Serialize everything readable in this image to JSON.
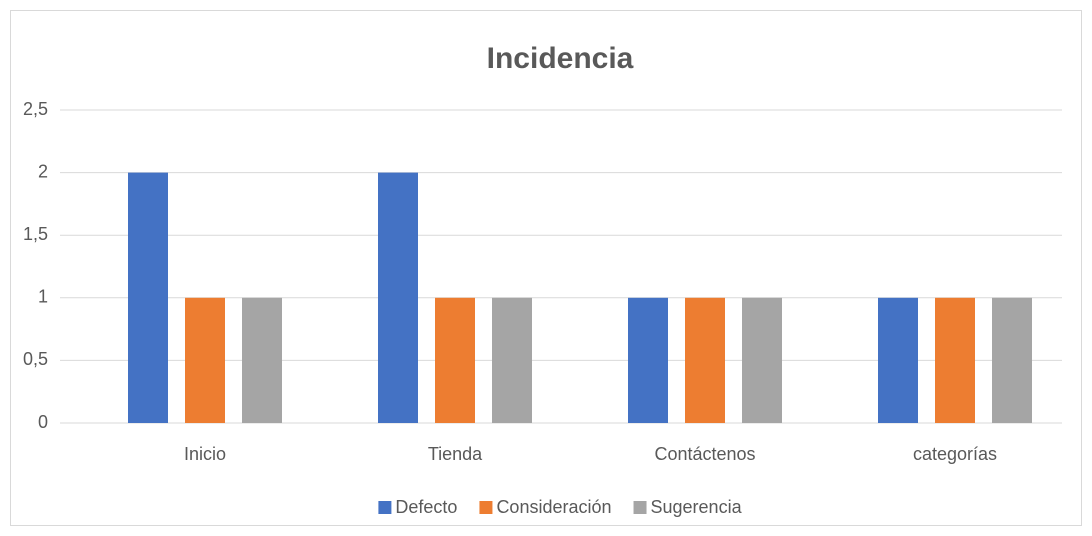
{
  "chart_data": {
    "type": "bar",
    "title": "Incidencia",
    "categories": [
      "Inicio",
      "Tienda",
      "Contáctenos",
      "categorías"
    ],
    "series": [
      {
        "name": "Defecto",
        "color": "#4472c4",
        "values": [
          2,
          2,
          1,
          1
        ]
      },
      {
        "name": "Consideración",
        "color": "#ed7d31",
        "values": [
          1,
          1,
          1,
          1
        ]
      },
      {
        "name": "Sugerencia",
        "color": "#a5a5a5",
        "values": [
          1,
          1,
          1,
          1
        ]
      }
    ],
    "ylim": [
      0,
      2.5
    ],
    "yticks": [
      0,
      {
        "value": 0.5,
        "label": "0,5"
      },
      1,
      {
        "value": 1.5,
        "label": "1,5"
      },
      2,
      {
        "value": 2.5,
        "label": "2,5"
      }
    ],
    "grid": true,
    "legend": "bottom"
  }
}
